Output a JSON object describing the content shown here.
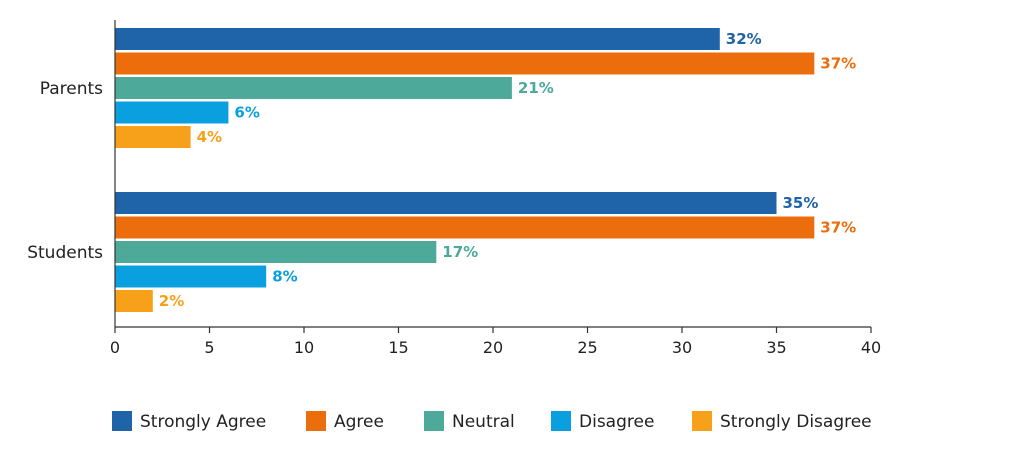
{
  "chart_data": {
    "type": "bar",
    "orientation": "horizontal",
    "categories": [
      "Parents",
      "Students"
    ],
    "series": [
      {
        "name": "Strongly Agree",
        "color": "#1f63a8",
        "values": [
          32,
          35
        ],
        "labels": [
          "32%",
          "35%"
        ]
      },
      {
        "name": "Agree",
        "color": "#ec6d0c",
        "values": [
          37,
          37
        ],
        "labels": [
          "37%",
          "37%"
        ]
      },
      {
        "name": "Neutral",
        "color": "#4da99a",
        "values": [
          21,
          17
        ],
        "labels": [
          "21%",
          "17%"
        ]
      },
      {
        "name": "Disagree",
        "color": "#0aa0e0",
        "values": [
          6,
          8
        ],
        "labels": [
          "6%",
          "8%"
        ]
      },
      {
        "name": "Strongly Disagree",
        "color": "#f7a11a",
        "values": [
          4,
          2
        ],
        "labels": [
          "4%",
          "2%"
        ]
      }
    ],
    "xlim": [
      0,
      40
    ],
    "xticks": [
      "0",
      "5",
      "10",
      "15",
      "20",
      "25",
      "30",
      "35",
      "40"
    ],
    "xlabel": "",
    "ylabel": "",
    "grid": false,
    "legend_position": "bottom"
  }
}
